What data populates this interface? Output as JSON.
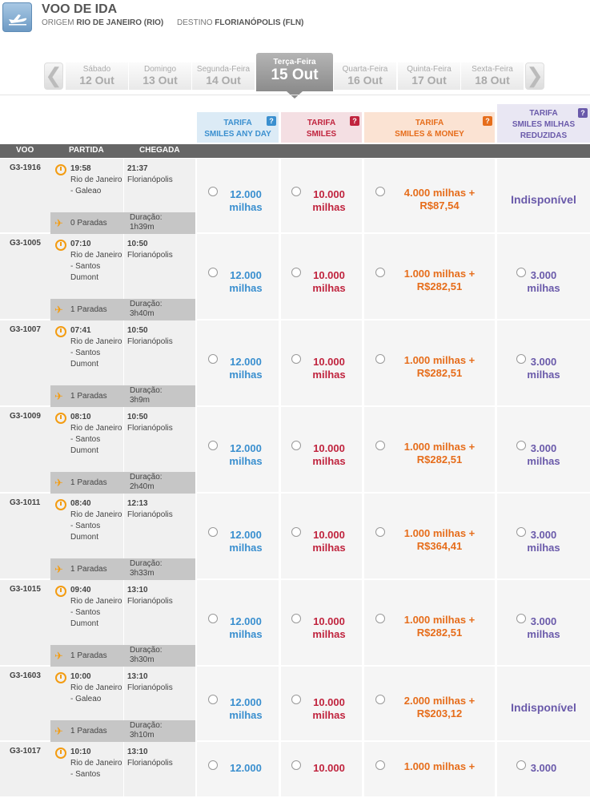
{
  "header": {
    "title": "VOO DE IDA",
    "origem_label": "ORIGEM",
    "origem_value": "RIO DE JANEIRO (RIO)",
    "destino_label": "DESTINO",
    "destino_value": "FLORIANÓPOLIS (FLN)"
  },
  "dates": {
    "prev_arrow": "❮",
    "next_arrow": "❯",
    "days": [
      {
        "name": "Sábado",
        "date": "12 Out"
      },
      {
        "name": "Domingo",
        "date": "13 Out"
      },
      {
        "name": "Segunda-Feira",
        "date": "14 Out"
      },
      {
        "name": "Terça-Feira",
        "date": "15 Out"
      },
      {
        "name": "Quarta-Feira",
        "date": "16 Out"
      },
      {
        "name": "Quinta-Feira",
        "date": "17 Out"
      },
      {
        "name": "Sexta-Feira",
        "date": "18 Out"
      }
    ]
  },
  "tarifas": [
    {
      "line1": "TARIFA",
      "line2": "SMILES ANY DAY",
      "line3": "",
      "help": "?"
    },
    {
      "line1": "TARIFA",
      "line2": "SMILES",
      "line3": "",
      "help": "?"
    },
    {
      "line1": "TARIFA",
      "line2": "SMILES & MONEY",
      "line3": "",
      "help": "?"
    },
    {
      "line1": "TARIFA",
      "line2": "SMILES MILHAS",
      "line3": "REDUZIDAS",
      "help": "?"
    }
  ],
  "columns": {
    "voo": "VOO",
    "partida": "PARTIDA",
    "chegada": "CHEGADA"
  },
  "flights": [
    {
      "code": "G3-1916",
      "dep_time": "19:58",
      "dep_place": "Rio de Janeiro - Galeao",
      "arr_time": "21:37",
      "arr_place": "Florianópolis",
      "stops": "0 Paradas",
      "dur_label": "Duração:",
      "dur": "1h39m",
      "p1": "12.000",
      "p2": "10.000",
      "p3a": "4.000 milhas +",
      "p3b": "R$87,54",
      "p4": "",
      "unit": "milhas",
      "unavailable": "Indisponível"
    },
    {
      "code": "G3-1005",
      "dep_time": "07:10",
      "dep_place": "Rio de Janeiro - Santos Dumont",
      "arr_time": "10:50",
      "arr_place": "Florianópolis",
      "stops": "1 Paradas",
      "dur_label": "Duração:",
      "dur": "3h40m",
      "p1": "12.000",
      "p2": "10.000",
      "p3a": "1.000 milhas +",
      "p3b": "R$282,51",
      "p4": "3.000",
      "unit": "milhas",
      "unavailable": ""
    },
    {
      "code": "G3-1007",
      "dep_time": "07:41",
      "dep_place": "Rio de Janeiro - Santos Dumont",
      "arr_time": "10:50",
      "arr_place": "Florianópolis",
      "stops": "1 Paradas",
      "dur_label": "Duração:",
      "dur": "3h9m",
      "p1": "12.000",
      "p2": "10.000",
      "p3a": "1.000 milhas +",
      "p3b": "R$282,51",
      "p4": "3.000",
      "unit": "milhas",
      "unavailable": ""
    },
    {
      "code": "G3-1009",
      "dep_time": "08:10",
      "dep_place": "Rio de Janeiro - Santos Dumont",
      "arr_time": "10:50",
      "arr_place": "Florianópolis",
      "stops": "1 Paradas",
      "dur_label": "Duração:",
      "dur": "2h40m",
      "p1": "12.000",
      "p2": "10.000",
      "p3a": "1.000 milhas +",
      "p3b": "R$282,51",
      "p4": "3.000",
      "unit": "milhas",
      "unavailable": ""
    },
    {
      "code": "G3-1011",
      "dep_time": "08:40",
      "dep_place": "Rio de Janeiro - Santos Dumont",
      "arr_time": "12:13",
      "arr_place": "Florianópolis",
      "stops": "1 Paradas",
      "dur_label": "Duração:",
      "dur": "3h33m",
      "p1": "12.000",
      "p2": "10.000",
      "p3a": "1.000 milhas +",
      "p3b": "R$364,41",
      "p4": "3.000",
      "unit": "milhas",
      "unavailable": ""
    },
    {
      "code": "G3-1015",
      "dep_time": "09:40",
      "dep_place": "Rio de Janeiro - Santos Dumont",
      "arr_time": "13:10",
      "arr_place": "Florianópolis",
      "stops": "1 Paradas",
      "dur_label": "Duração:",
      "dur": "3h30m",
      "p1": "12.000",
      "p2": "10.000",
      "p3a": "1.000 milhas +",
      "p3b": "R$282,51",
      "p4": "3.000",
      "unit": "milhas",
      "unavailable": ""
    },
    {
      "code": "G3-1603",
      "dep_time": "10:00",
      "dep_place": "Rio de Janeiro - Galeao",
      "arr_time": "13:10",
      "arr_place": "Florianópolis",
      "stops": "1 Paradas",
      "dur_label": "Duração:",
      "dur": "3h10m",
      "p1": "12.000",
      "p2": "10.000",
      "p3a": "2.000 milhas +",
      "p3b": "R$203,12",
      "p4": "",
      "unit": "milhas",
      "unavailable": "Indisponível"
    },
    {
      "code": "G3-1017",
      "dep_time": "10:10",
      "dep_place": "Rio de Janeiro - Santos",
      "arr_time": "13:10",
      "arr_place": "Florianópolis",
      "stops": "",
      "dur_label": "",
      "dur": "",
      "p1": "12.000",
      "p2": "10.000",
      "p3a": "1.000 milhas +",
      "p3b": "",
      "p4": "3.000",
      "unit": "",
      "unavailable": ""
    }
  ]
}
